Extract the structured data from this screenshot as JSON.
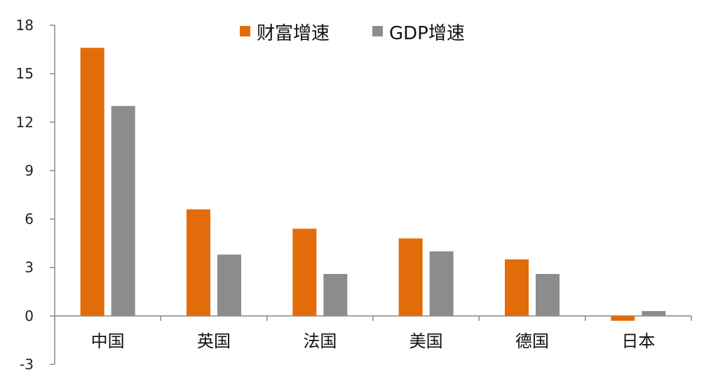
{
  "chart_data": {
    "type": "bar",
    "categories": [
      "中国",
      "英国",
      "法国",
      "美国",
      "德国",
      "日本"
    ],
    "series": [
      {
        "name": "财富增速",
        "values": [
          16.6,
          6.6,
          5.4,
          4.8,
          3.5,
          -0.3
        ],
        "color": "#E36C0A"
      },
      {
        "name": "GDP增速",
        "values": [
          13.0,
          3.8,
          2.6,
          4.0,
          2.6,
          0.3
        ],
        "color": "#8C8C8C"
      }
    ],
    "yticks": [
      "18",
      "15",
      "12",
      "9",
      "6",
      "3",
      "0",
      "-3"
    ],
    "ylim": [
      -3,
      18
    ],
    "grid": false,
    "legend": "top-center"
  }
}
